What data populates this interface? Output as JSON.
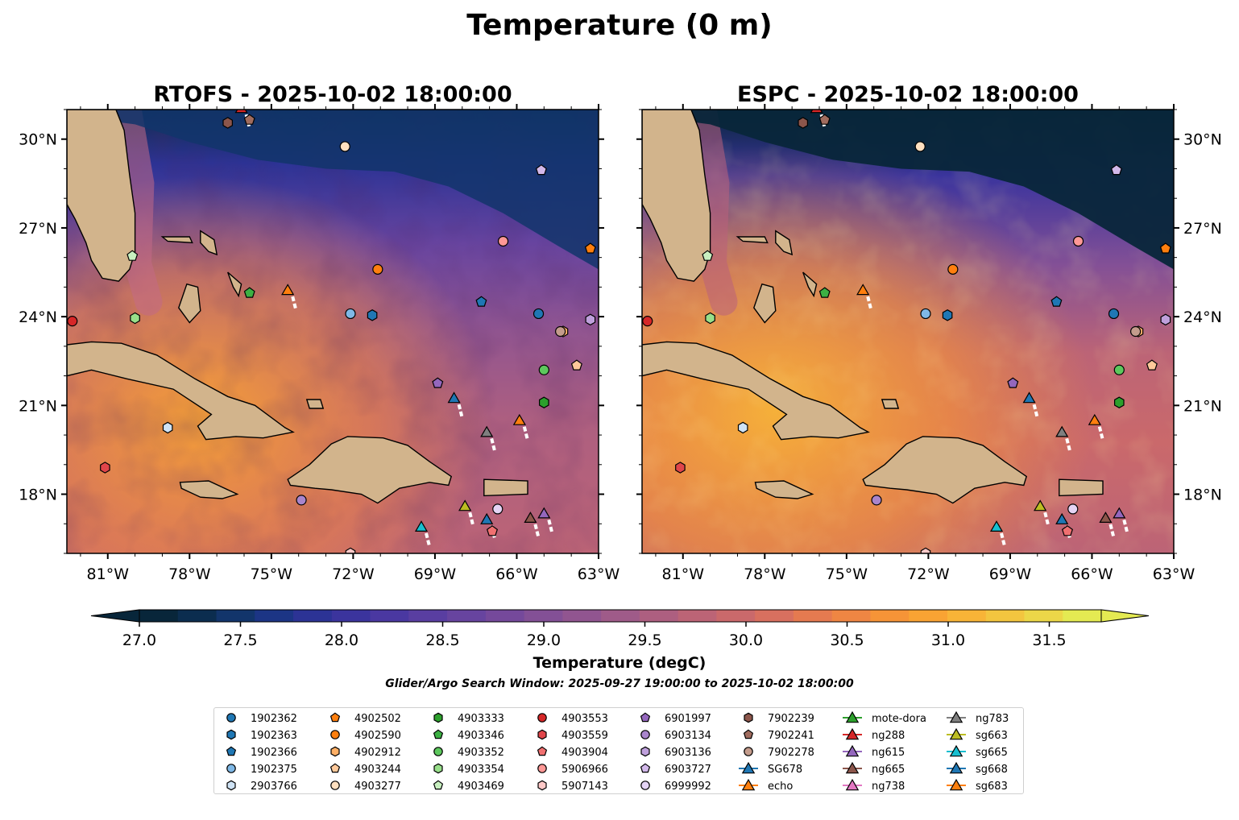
{
  "suptitle": "Temperature (0 m)",
  "window_text": "Glider/Argo Search Window: 2025-09-27 19:00:00 to 2025-10-02 18:00:00",
  "chart_data": {
    "type": "heatmap",
    "panels": [
      {
        "model": "RTOFS",
        "title": "RTOFS - 2025-10-02 18:00:00",
        "lat_label_side": "left"
      },
      {
        "model": "ESPC",
        "title": "ESPC - 2025-10-02 18:00:00",
        "lat_label_side": "right"
      }
    ],
    "lon_range": [
      -82.5,
      -63
    ],
    "lat_range": [
      16,
      31
    ],
    "lon_ticks": [
      {
        "v": -81,
        "label": "81°W"
      },
      {
        "v": -78,
        "label": "78°W"
      },
      {
        "v": -75,
        "label": "75°W"
      },
      {
        "v": -72,
        "label": "72°W"
      },
      {
        "v": -69,
        "label": "69°W"
      },
      {
        "v": -66,
        "label": "66°W"
      },
      {
        "v": -63,
        "label": "63°W"
      }
    ],
    "lat_ticks": [
      {
        "v": 18,
        "label": "18°N"
      },
      {
        "v": 21,
        "label": "21°N"
      },
      {
        "v": 24,
        "label": "24°N"
      },
      {
        "v": 27,
        "label": "27°N"
      },
      {
        "v": 30,
        "label": "30°N"
      }
    ],
    "colorbar": {
      "label": "Temperature (degC)",
      "vmin": 26.75,
      "vmax": 31.75,
      "step": 0.25,
      "ticks": [
        "27.0",
        "27.5",
        "28.0",
        "28.5",
        "29.0",
        "29.5",
        "30.0",
        "30.5",
        "31.0",
        "31.5"
      ],
      "colors": [
        "#08263a",
        "#0b2d4f",
        "#12356b",
        "#1c3585",
        "#2c3395",
        "#3b349d",
        "#4a38a1",
        "#593ea1",
        "#67449f",
        "#75499b",
        "#835096",
        "#915590",
        "#9f5b89",
        "#ad5f80",
        "#bc6476",
        "#ca696b",
        "#d8705f",
        "#e57a50",
        "#ef8643",
        "#f69437",
        "#f9a333",
        "#f8b437",
        "#f3c53f",
        "#ecd748",
        "#e4ea52"
      ],
      "extend": "both"
    },
    "land_color": "#d2b48c",
    "legend_columns": [
      [
        {
          "id": "1902362",
          "marker": "circle",
          "color": "#1f77b4"
        },
        {
          "id": "1902363",
          "marker": "hexagon",
          "color": "#1f77b4"
        },
        {
          "id": "1902366",
          "marker": "pentagon",
          "color": "#1f77b4"
        },
        {
          "id": "1902375",
          "marker": "circle",
          "color": "#7fb8e6"
        },
        {
          "id": "2903766",
          "marker": "hexagon",
          "color": "#cfe3f5"
        }
      ],
      [
        {
          "id": "4902502",
          "marker": "pentagon",
          "color": "#ff7f0e"
        },
        {
          "id": "4902590",
          "marker": "circle",
          "color": "#ff7f0e"
        },
        {
          "id": "4902912",
          "marker": "hexagon",
          "color": "#ffb066"
        },
        {
          "id": "4903244",
          "marker": "pentagon",
          "color": "#ffc99a"
        },
        {
          "id": "4903277",
          "marker": "circle",
          "color": "#ffe0c0"
        }
      ],
      [
        {
          "id": "4903333",
          "marker": "hexagon",
          "color": "#2ca02c"
        },
        {
          "id": "4903346",
          "marker": "pentagon",
          "color": "#3cb043"
        },
        {
          "id": "4903352",
          "marker": "circle",
          "color": "#5dc85d"
        },
        {
          "id": "4903354",
          "marker": "hexagon",
          "color": "#98df8a"
        },
        {
          "id": "4903469",
          "marker": "pentagon",
          "color": "#c8f0c0"
        }
      ],
      [
        {
          "id": "4903553",
          "marker": "circle",
          "color": "#d62728"
        },
        {
          "id": "4903559",
          "marker": "hexagon",
          "color": "#e0454a"
        },
        {
          "id": "4903904",
          "marker": "pentagon",
          "color": "#f07070"
        },
        {
          "id": "5906966",
          "marker": "circle",
          "color": "#ff9896"
        },
        {
          "id": "5907143",
          "marker": "hexagon",
          "color": "#ffc9c8"
        }
      ],
      [
        {
          "id": "6901997",
          "marker": "pentagon",
          "color": "#9467bd"
        },
        {
          "id": "6903134",
          "marker": "circle",
          "color": "#a985cc"
        },
        {
          "id": "6903136",
          "marker": "hexagon",
          "color": "#bfa0dc"
        },
        {
          "id": "6903727",
          "marker": "pentagon",
          "color": "#d2b8ea"
        },
        {
          "id": "6999992",
          "marker": "circle",
          "color": "#e5d4f5"
        }
      ],
      [
        {
          "id": "7902239",
          "marker": "hexagon",
          "color": "#8c564b"
        },
        {
          "id": "7902241",
          "marker": "pentagon",
          "color": "#a06c5e"
        },
        {
          "id": "7902278",
          "marker": "circle",
          "color": "#c49c8c"
        },
        {
          "id": "SG678",
          "marker": "triangle",
          "color": "#1f77b4"
        },
        {
          "id": "echo",
          "marker": "triangle",
          "color": "#ff7f0e"
        }
      ],
      [
        {
          "id": "mote-dora",
          "marker": "triangle",
          "color": "#2ca02c"
        },
        {
          "id": "ng288",
          "marker": "triangle",
          "color": "#d62728"
        },
        {
          "id": "ng615",
          "marker": "triangle",
          "color": "#9467bd"
        },
        {
          "id": "ng665",
          "marker": "triangle",
          "color": "#8c564b"
        },
        {
          "id": "ng738",
          "marker": "triangle",
          "color": "#e377c2"
        }
      ],
      [
        {
          "id": "ng783",
          "marker": "triangle",
          "color": "#7f7f7f"
        },
        {
          "id": "sg663",
          "marker": "triangle",
          "color": "#bcbd22"
        },
        {
          "id": "sg665",
          "marker": "triangle",
          "color": "#17becf"
        },
        {
          "id": "sg668",
          "marker": "triangle",
          "color": "#1f77b4"
        },
        {
          "id": "sg683",
          "marker": "triangle",
          "color": "#ff7f0e"
        }
      ]
    ],
    "observations": [
      {
        "id": "1902362",
        "lon": -65.2,
        "lat": 24.1
      },
      {
        "id": "1902363",
        "lon": -71.3,
        "lat": 24.05
      },
      {
        "id": "1902366",
        "lon": -67.3,
        "lat": 24.5
      },
      {
        "id": "1902375",
        "lon": -72.1,
        "lat": 24.1
      },
      {
        "id": "2903766",
        "lon": -78.8,
        "lat": 20.25
      },
      {
        "id": "4902502",
        "lon": -63.3,
        "lat": 26.3
      },
      {
        "id": "4902590",
        "lon": -71.1,
        "lat": 25.6
      },
      {
        "id": "4902912",
        "lon": -64.3,
        "lat": 23.5
      },
      {
        "id": "4903244",
        "lon": -63.8,
        "lat": 22.35
      },
      {
        "id": "4903277",
        "lon": -72.3,
        "lat": 29.75
      },
      {
        "id": "4903333",
        "lon": -65.0,
        "lat": 21.1
      },
      {
        "id": "4903346",
        "lon": -75.8,
        "lat": 24.8
      },
      {
        "id": "4903352",
        "lon": -65.0,
        "lat": 22.2
      },
      {
        "id": "4903354",
        "lon": -80.0,
        "lat": 23.95
      },
      {
        "id": "4903469",
        "lon": -80.1,
        "lat": 26.05
      },
      {
        "id": "4903553",
        "lon": -82.3,
        "lat": 23.85
      },
      {
        "id": "4903559",
        "lon": -81.1,
        "lat": 18.9
      },
      {
        "id": "4903904",
        "lon": -66.9,
        "lat": 16.75
      },
      {
        "id": "5906966",
        "lon": -66.5,
        "lat": 26.55
      },
      {
        "id": "5907143",
        "lon": -72.1,
        "lat": 16.0
      },
      {
        "id": "6901997",
        "lon": -68.9,
        "lat": 21.75
      },
      {
        "id": "6903134",
        "lon": -73.9,
        "lat": 17.8
      },
      {
        "id": "6903136",
        "lon": -63.3,
        "lat": 23.9
      },
      {
        "id": "6903727",
        "lon": -65.1,
        "lat": 28.95
      },
      {
        "id": "6999992",
        "lon": -66.7,
        "lat": 17.5
      },
      {
        "id": "7902239",
        "lon": -76.6,
        "lat": 30.55
      },
      {
        "id": "7902241",
        "lon": -75.8,
        "lat": 30.65
      },
      {
        "id": "7902278",
        "lon": -64.4,
        "lat": 23.5
      },
      {
        "id": "SG678",
        "lon": -67.1,
        "lat": 17.15
      },
      {
        "id": "echo",
        "lon": -74.4,
        "lat": 24.9
      },
      {
        "id": "ng288",
        "lon": -76.1,
        "lat": 31.05
      },
      {
        "id": "ng615",
        "lon": -65.0,
        "lat": 17.35
      },
      {
        "id": "ng665",
        "lon": -65.5,
        "lat": 17.2
      },
      {
        "id": "ng783",
        "lon": -67.1,
        "lat": 20.1
      },
      {
        "id": "sg663",
        "lon": -67.9,
        "lat": 17.6
      },
      {
        "id": "sg665",
        "lon": -69.5,
        "lat": 16.9
      },
      {
        "id": "sg668",
        "lon": -68.3,
        "lat": 21.25
      },
      {
        "id": "sg683",
        "lon": -65.9,
        "lat": 20.5
      }
    ]
  }
}
